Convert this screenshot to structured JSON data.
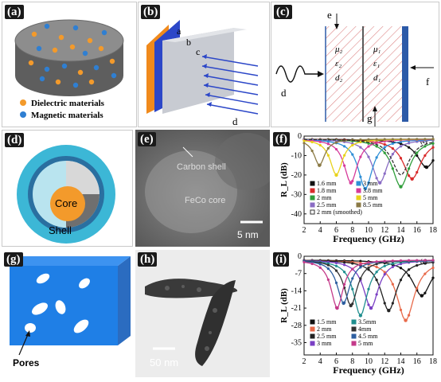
{
  "panels": {
    "a": {
      "label": "(a)",
      "legend": [
        "Dielectric materials",
        "Magnetic materials"
      ],
      "colors": {
        "dielectric": "#f39a2b",
        "magnetic": "#2f7fd2"
      }
    },
    "b": {
      "label": "(b)",
      "layer_labels": [
        "a",
        "b",
        "c",
        "d"
      ]
    },
    "c": {
      "label": "(c)",
      "labels": [
        "e",
        "d",
        "f",
        "g"
      ],
      "symbols": {
        "mu2": "μ₂",
        "eps2": "ε₂",
        "d2": "d₂",
        "mu1": "μ₁",
        "eps1": "ε₁",
        "d1": "d₁"
      }
    },
    "d": {
      "label": "(d)",
      "core": "Core",
      "shell": "Shell"
    },
    "e": {
      "label": "(e)",
      "carbon": "Carbon shell",
      "core": "FeCo core",
      "scale": "5 nm"
    },
    "f": {
      "label": "(f)"
    },
    "g": {
      "label": "(g)",
      "pores": "Pores"
    },
    "h": {
      "label": "(h)",
      "scale": "50 nm"
    },
    "i": {
      "label": "(i)"
    }
  },
  "chart_data": [
    {
      "type": "line",
      "panel": "f",
      "corner_label": "(c)",
      "xlabel": "Frequency (GHz)",
      "ylabel": "R_L (dB)",
      "xlim": [
        2,
        18
      ],
      "ylim": [
        -45,
        0
      ],
      "xticks": [
        2,
        4,
        6,
        8,
        10,
        12,
        14,
        16,
        18
      ],
      "yticks": [
        0,
        -10,
        -20,
        -30,
        -40
      ],
      "series": [
        {
          "name": "1.6 mm",
          "color": "#111111",
          "marker": "square",
          "min_freq": 17.2,
          "min_rl": -16
        },
        {
          "name": "1.8 mm",
          "color": "#d92b2b",
          "marker": "circle",
          "min_freq": 15.4,
          "min_rl": -22
        },
        {
          "name": "2 mm",
          "color": "#2f9e3a",
          "marker": "triangle",
          "min_freq": 14.0,
          "min_rl": -26
        },
        {
          "name": "2.5 mm",
          "color": "#8a6cc4",
          "marker": "triangle-down",
          "min_freq": 11.4,
          "min_rl": -24
        },
        {
          "name": "3 mm",
          "color": "#2f8fd6",
          "marker": "diamond",
          "min_freq": 9.6,
          "min_rl": -27
        },
        {
          "name": "3.8 mm",
          "color": "#d63a9a",
          "marker": "triangle-left",
          "min_freq": 7.8,
          "min_rl": -24
        },
        {
          "name": "5 mm",
          "color": "#e8d21b",
          "marker": "triangle-right",
          "min_freq": 6.0,
          "min_rl": -20
        },
        {
          "name": "8.5 mm",
          "color": "#8b7a45",
          "marker": "circle",
          "min_freq": 3.9,
          "min_rl": -15
        },
        {
          "name": "2 mm (smoothed)",
          "color": "#333333",
          "marker": "dashed",
          "min_freq": 14.0,
          "min_rl": -20
        }
      ]
    },
    {
      "type": "line",
      "panel": "i",
      "corner_label": "(c)",
      "xlabel": "Frequency (GHz)",
      "ylabel": "R_L (dB)",
      "xlim": [
        2,
        18
      ],
      "ylim": [
        -40,
        0
      ],
      "xticks": [
        2,
        4,
        6,
        8,
        10,
        12,
        14,
        16,
        18
      ],
      "yticks": [
        0,
        -7,
        -14,
        -21,
        -28,
        -35
      ],
      "series": [
        {
          "name": "1.5 mm",
          "color": "#111111",
          "marker": "square",
          "min_freq": 16.6,
          "min_rl": -16
        },
        {
          "name": "2 mm",
          "color": "#e86a4a",
          "marker": "circle-open",
          "min_freq": 14.6,
          "min_rl": -26
        },
        {
          "name": "2.5 mm",
          "color": "#222222",
          "marker": "triangle",
          "min_freq": 12.5,
          "min_rl": -22
        },
        {
          "name": "3 mm",
          "color": "#7a3fc4",
          "marker": "triangle-down",
          "min_freq": 10.3,
          "min_rl": -21
        },
        {
          "name": "3.5mm",
          "color": "#1f8f8f",
          "marker": "diamond",
          "min_freq": 9.0,
          "min_rl": -24
        },
        {
          "name": "4mm",
          "color": "#333333",
          "marker": "triangle-left",
          "min_freq": 7.8,
          "min_rl": -20
        },
        {
          "name": "4.5 mm",
          "color": "#2e5fa0",
          "marker": "triangle-right",
          "min_freq": 6.9,
          "min_rl": -19
        },
        {
          "name": "5 mm",
          "color": "#c43a8a",
          "marker": "circle",
          "min_freq": 6.1,
          "min_rl": -21
        }
      ]
    }
  ]
}
